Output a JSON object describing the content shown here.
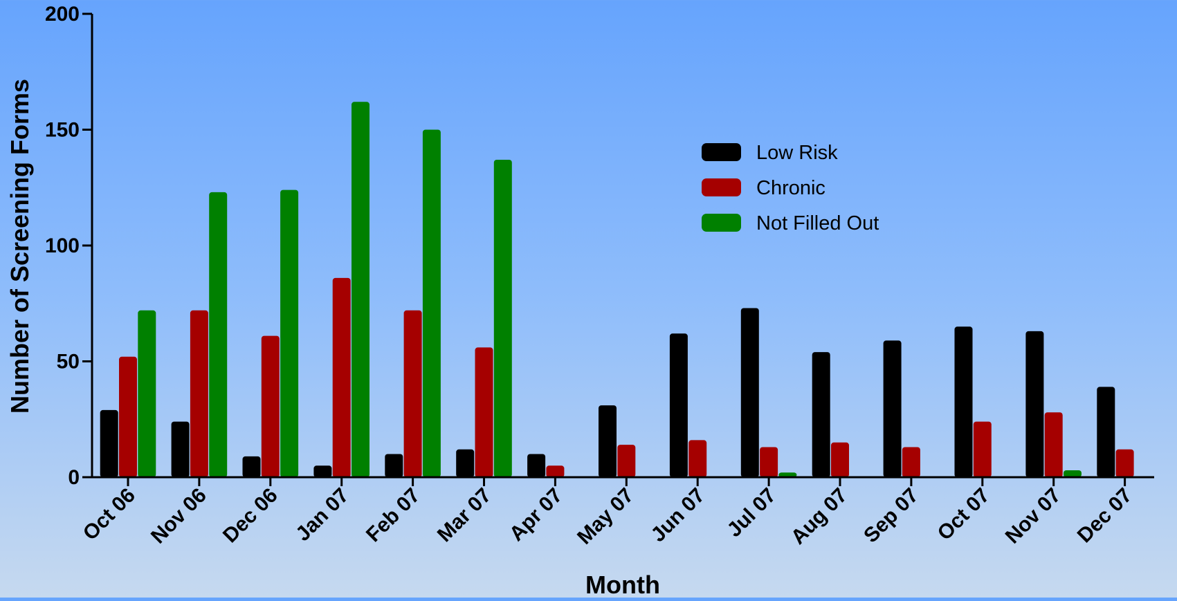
{
  "chart_data": {
    "type": "bar",
    "xlabel": "Month",
    "ylabel": "Number of  Screening Forms",
    "ylim": [
      0,
      200
    ],
    "yticks": [
      0,
      50,
      100,
      150,
      200
    ],
    "categories": [
      "Oct 06",
      "Nov 06",
      "Dec 06",
      "Jan 07",
      "Feb 07",
      "Mar 07",
      "Apr 07",
      "May 07",
      "Jun 07",
      "Jul 07",
      "Aug 07",
      "Sep 07",
      "Oct 07",
      "Nov 07",
      "Dec 07"
    ],
    "series": [
      {
        "name": "Low Risk",
        "color": "#000000",
        "values": [
          29,
          24,
          9,
          5,
          10,
          12,
          10,
          31,
          62,
          73,
          54,
          59,
          65,
          63,
          39
        ]
      },
      {
        "name": "Chronic",
        "color": "#a50000",
        "values": [
          52,
          72,
          61,
          86,
          72,
          56,
          5,
          14,
          16,
          13,
          15,
          13,
          24,
          28,
          12
        ]
      },
      {
        "name": "Not Filled Out",
        "color": "#008000",
        "values": [
          72,
          123,
          124,
          162,
          150,
          137,
          0,
          0,
          0,
          2,
          0,
          0,
          0,
          3,
          0
        ]
      }
    ],
    "grid": false,
    "legend_position": "top-right"
  }
}
